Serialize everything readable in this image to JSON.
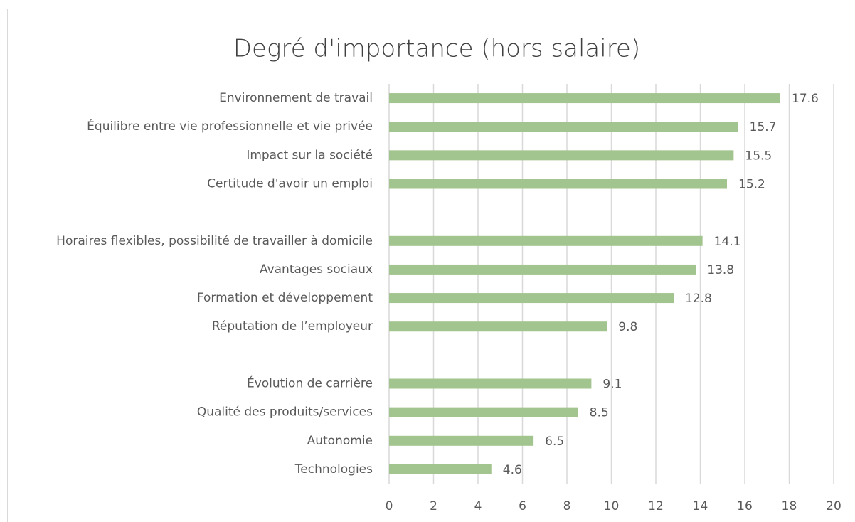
{
  "chart_data": {
    "type": "hbar",
    "title": "Degré d'importance (hors salaire)",
    "categories": [
      "Environnement de travail",
      "Équilibre entre vie professionnelle et vie privée",
      "Impact sur la société",
      "Certitude d'avoir un emploi",
      null,
      "Horaires flexibles, possibilité de travailler à domicile",
      "Avantages sociaux",
      "Formation et développement",
      "Réputation de l’employeur",
      null,
      "Évolution de carrière",
      "Qualité des produits/services",
      "Autonomie",
      "Technologies"
    ],
    "values": [
      17.6,
      15.7,
      15.5,
      15.2,
      null,
      14.1,
      13.8,
      12.8,
      9.8,
      null,
      9.1,
      8.5,
      6.5,
      4.6
    ],
    "color": "#a2c48e",
    "xlim": [
      0,
      20
    ],
    "xticks": [
      0,
      2,
      4,
      6,
      8,
      10,
      12,
      14,
      16,
      18,
      20
    ],
    "grid": true
  }
}
